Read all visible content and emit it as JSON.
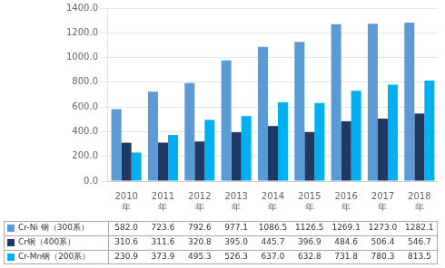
{
  "chart_data": {
    "type": "bar",
    "categories": [
      "2010\n年",
      "2011\n年",
      "2012\n年",
      "2013\n年",
      "2014\n年",
      "2015\n年",
      "2016\n年",
      "2017\n年",
      "2018\n年"
    ],
    "series": [
      {
        "name": "Cr-Ni 钢（300系）",
        "color": "#5b9bd5",
        "values": [
          582.0,
          723.6,
          792.6,
          977.1,
          1086.5,
          1126.5,
          1269.1,
          1273.0,
          1282.1
        ],
        "value_labels": [
          "582.0",
          "723.6",
          "792.6",
          "977.1",
          "1086.5",
          "1126.5",
          "1269.1",
          "1273.0",
          "1282.1"
        ]
      },
      {
        "name": "Cr钢（400系）",
        "color": "#1f3864",
        "values": [
          310.6,
          311.6,
          320.8,
          395.0,
          445.7,
          396.9,
          484.6,
          506.4,
          546.7
        ],
        "value_labels": [
          "310.6",
          "311.6",
          "320.8",
          "395.0",
          "445.7",
          "396.9",
          "484.6",
          "506.4",
          "546.7"
        ]
      },
      {
        "name": "Cr-Mn钢（200系）",
        "color": "#00b0f0",
        "values": [
          230.9,
          373.9,
          495.3,
          526.3,
          637.0,
          632.8,
          731.8,
          780.3,
          813.5
        ],
        "value_labels": [
          "230.9",
          "373.9",
          "495.3",
          "526.3",
          "637.0",
          "632.8",
          "731.8",
          "780.3",
          "813.5"
        ]
      }
    ],
    "ylim": [
      0,
      1400.0
    ],
    "yticks": [
      {
        "value": 0,
        "label": "0.0"
      },
      {
        "value": 200,
        "label": "200.0"
      },
      {
        "value": 400,
        "label": "400.0"
      },
      {
        "value": 600,
        "label": "600.0"
      },
      {
        "value": 800,
        "label": "800.0"
      },
      {
        "value": 1000,
        "label": "1000.0"
      },
      {
        "value": 1200,
        "label": "1200.0"
      },
      {
        "value": 1400,
        "label": "1400.0"
      }
    ],
    "grid": true,
    "legend": "bottom"
  }
}
